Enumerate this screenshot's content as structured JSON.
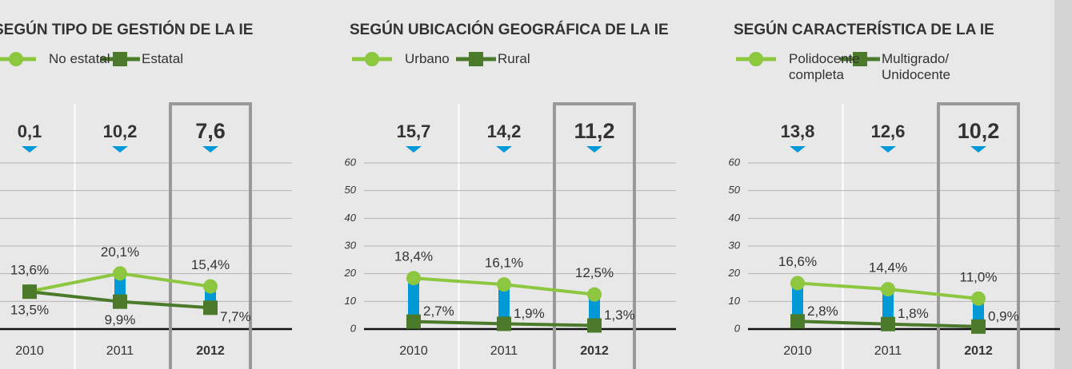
{
  "chart_data": [
    {
      "type": "line",
      "title": "SEGÚN TIPO DE GESTIÓN DE LA IE",
      "categories": [
        "2010",
        "2011",
        "2012"
      ],
      "highlight": 2,
      "ylim": [
        0,
        60
      ],
      "yticks": [
        0,
        10,
        20,
        30,
        40,
        50,
        60
      ],
      "gap": {
        "color": "#0099d8",
        "values": [
          0.1,
          10.2,
          7.6
        ],
        "value_labels": [
          "0,1",
          "10,2",
          "7,6"
        ]
      },
      "series": [
        {
          "name": "No estatal",
          "color": "#8dc63f",
          "marker": "circle",
          "values": [
            13.6,
            20.1,
            15.4
          ],
          "value_labels": [
            "13,6%",
            "20,1%",
            "15,4%"
          ]
        },
        {
          "name": "Estatal",
          "color": "#4a7a2a",
          "marker": "square",
          "values": [
            13.5,
            9.9,
            7.7
          ],
          "value_labels": [
            "13,5%",
            "9,9%",
            "7,7%"
          ]
        }
      ]
    },
    {
      "type": "line",
      "title": "SEGÚN UBICACIÓN GEOGRÁFICA DE LA IE",
      "categories": [
        "2010",
        "2011",
        "2012"
      ],
      "highlight": 2,
      "ylim": [
        0,
        60
      ],
      "yticks": [
        0,
        10,
        20,
        30,
        40,
        50,
        60
      ],
      "gap": {
        "color": "#0099d8",
        "values": [
          15.7,
          14.2,
          11.2
        ],
        "value_labels": [
          "15,7",
          "14,2",
          "11,2"
        ]
      },
      "series": [
        {
          "name": "Urbano",
          "color": "#8dc63f",
          "marker": "circle",
          "values": [
            18.4,
            16.1,
            12.5
          ],
          "value_labels": [
            "18,4%",
            "16,1%",
            "12,5%"
          ]
        },
        {
          "name": "Rural",
          "color": "#4a7a2a",
          "marker": "square",
          "values": [
            2.7,
            1.9,
            1.3
          ],
          "value_labels": [
            "2,7%",
            "1,9%",
            "1,3%"
          ]
        }
      ]
    },
    {
      "type": "line",
      "title": "SEGÚN CARACTERÍSTICA DE LA IE",
      "categories": [
        "2010",
        "2011",
        "2012"
      ],
      "highlight": 2,
      "ylim": [
        0,
        60
      ],
      "yticks": [
        0,
        10,
        20,
        30,
        40,
        50,
        60
      ],
      "gap": {
        "color": "#0099d8",
        "values": [
          13.8,
          12.6,
          10.2
        ],
        "value_labels": [
          "13,8",
          "12,6",
          "10,2"
        ]
      },
      "series": [
        {
          "name": "Polidocente completa",
          "color": "#8dc63f",
          "marker": "circle",
          "values": [
            16.6,
            14.4,
            11.0
          ],
          "value_labels": [
            "16,6%",
            "14,4%",
            "11,0%"
          ]
        },
        {
          "name": "Multigrado/ Unidocente",
          "color": "#4a7a2a",
          "marker": "square",
          "values": [
            2.8,
            1.8,
            0.9
          ],
          "value_labels": [
            "2,8%",
            "1,8%",
            "0,9%"
          ]
        }
      ]
    }
  ]
}
